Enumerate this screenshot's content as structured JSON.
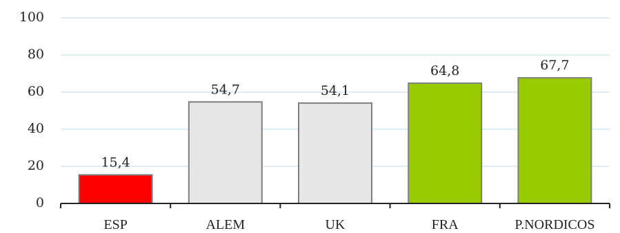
{
  "chart_data": {
    "type": "bar",
    "categories": [
      "ESP",
      "ALEM",
      "UK",
      "FRA",
      "P.NORDICOS"
    ],
    "values": [
      15.4,
      54.7,
      54.1,
      64.8,
      67.7
    ],
    "data_labels": [
      "15,4",
      "54,7",
      "54,1",
      "64,8",
      "67,7"
    ],
    "colors": [
      "#ff0000",
      "#e6e6e6",
      "#e6e6e6",
      "#99cc00",
      "#99cc00"
    ],
    "ylim": [
      0,
      100
    ],
    "yticks": [
      0,
      20,
      40,
      60,
      80,
      100
    ],
    "grid": true,
    "xlabel": "",
    "ylabel": ""
  }
}
